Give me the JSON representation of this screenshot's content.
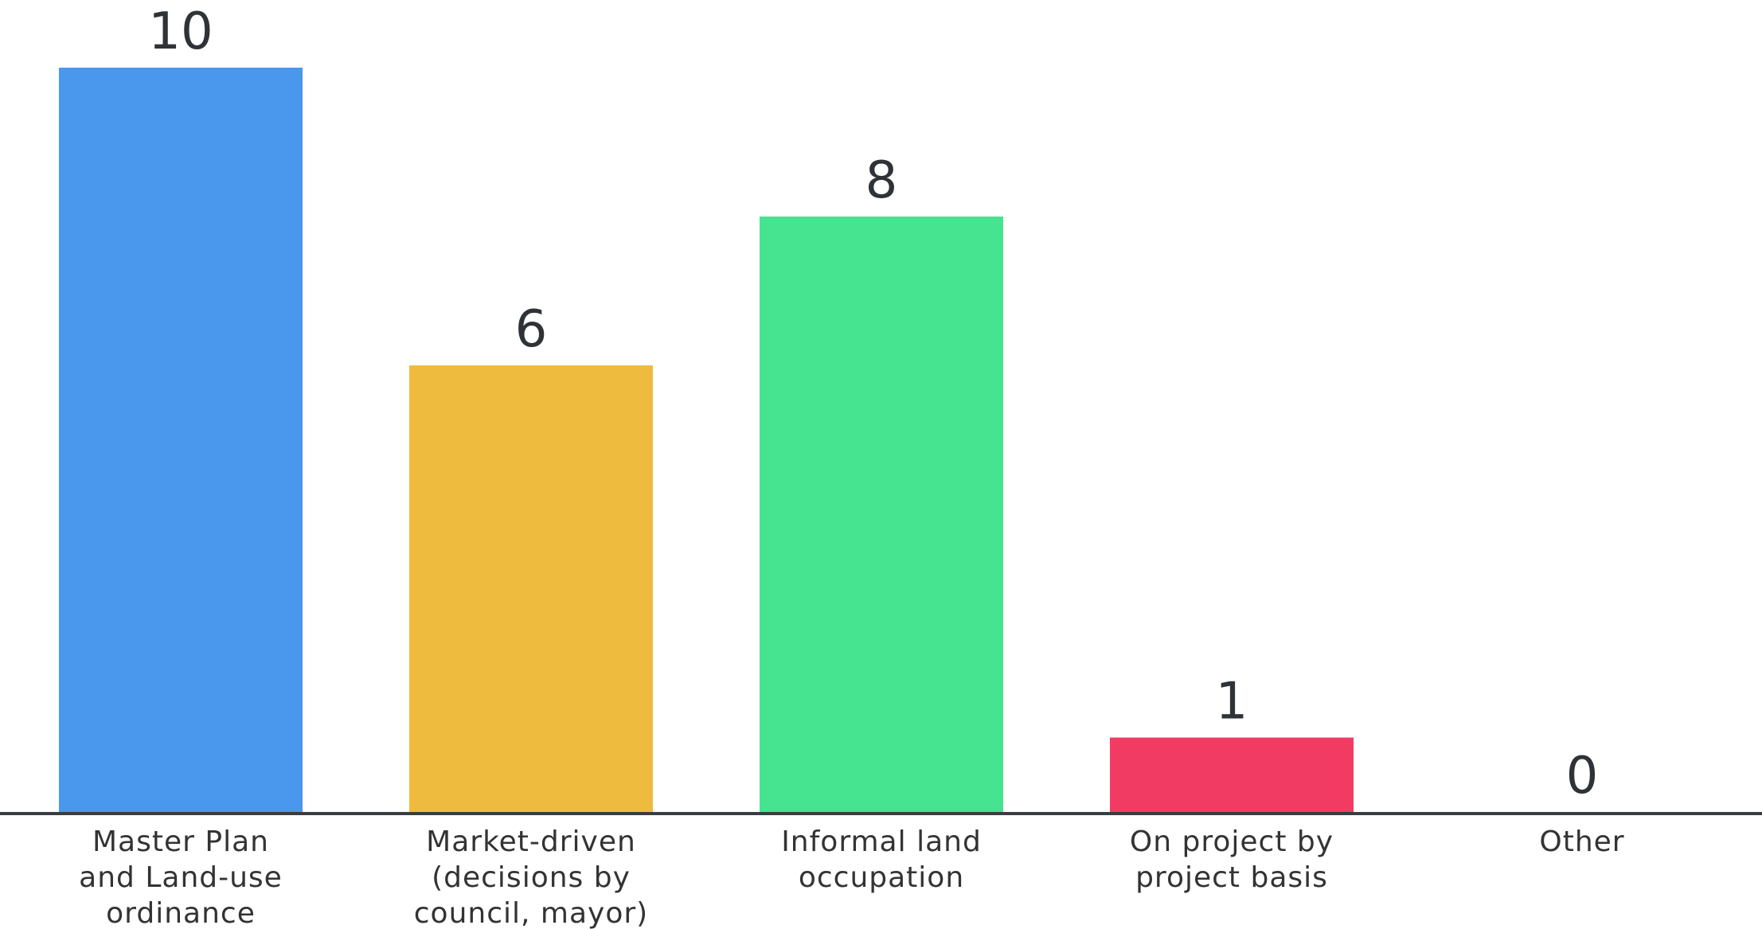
{
  "chart_data": {
    "type": "bar",
    "categories": [
      [
        "Master Plan",
        "and Land-use",
        "ordinance"
      ],
      [
        "Market-driven",
        "(decisions by",
        "council, mayor)"
      ],
      [
        "Informal land",
        "occupation"
      ],
      [
        "On project by",
        "project basis"
      ],
      [
        "Other"
      ]
    ],
    "values": [
      10,
      6,
      8,
      1,
      0
    ],
    "value_labels": [
      "10",
      "6",
      "8",
      "1",
      "0"
    ],
    "colors": [
      "#4a97ee",
      "#efbb3f",
      "#46e391",
      "#f23b63",
      "#cccccc"
    ],
    "ylim": [
      0,
      10
    ],
    "grid": false,
    "legend": "none"
  }
}
